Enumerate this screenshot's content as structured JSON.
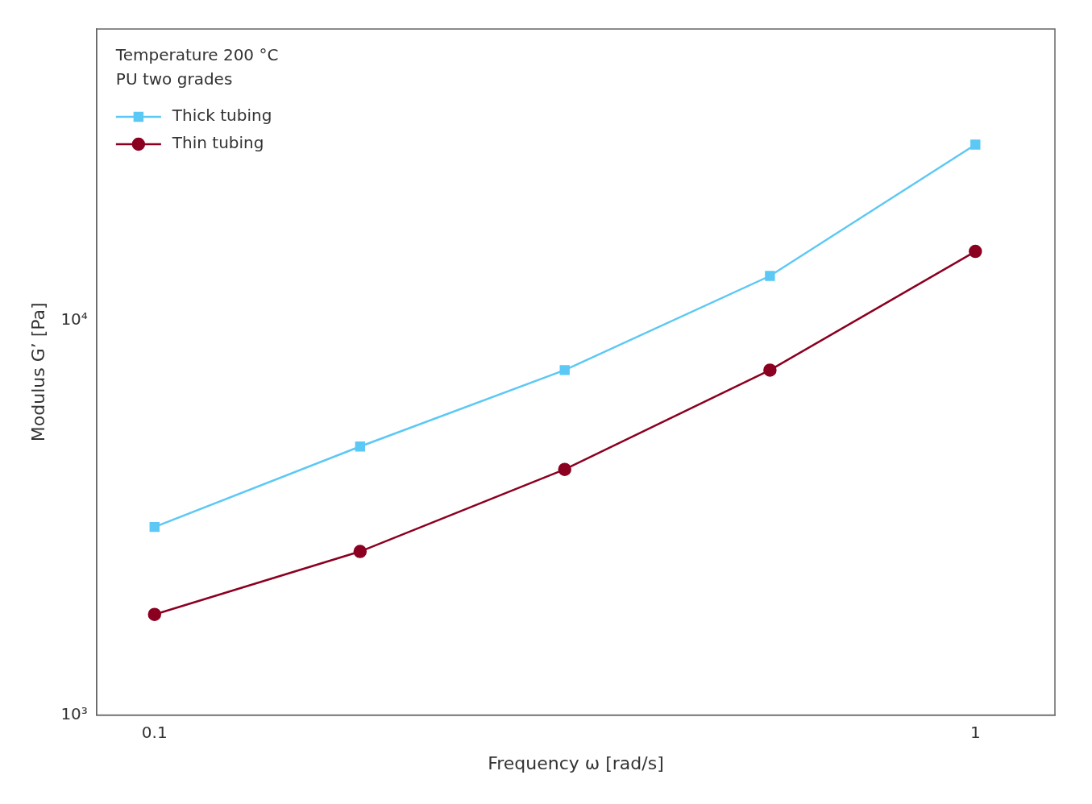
{
  "chart_data": {
    "type": "line",
    "x": [
      0.1,
      0.178,
      0.316,
      0.562,
      1.0
    ],
    "series": [
      {
        "name": "Thick tubing",
        "color": "#5BC8F5",
        "marker": "square",
        "line_style": "solid",
        "values": [
          3000,
          4800,
          7500,
          13000,
          28000
        ]
      },
      {
        "name": "Thin tubing",
        "color": "#8B0020",
        "marker": "circle",
        "line_style": "solid",
        "values": [
          1800,
          2600,
          4200,
          7500,
          15000
        ]
      }
    ],
    "x_label": "Frequency ω [rad/s]",
    "y_label": "Modulus G’ [Pa]",
    "annotations": [
      "Temperature 200 °C",
      "PU two grades"
    ],
    "log": true,
    "xlim": [
      0.085,
      1.25
    ],
    "xticks": [
      0.1,
      1
    ],
    "ylim": [
      1000,
      55000
    ],
    "yticks": [
      {
        "value": 1000,
        "label": "10³"
      },
      {
        "value": 10000,
        "label": "10⁴"
      }
    ],
    "grid": false,
    "legend": "upper left"
  }
}
